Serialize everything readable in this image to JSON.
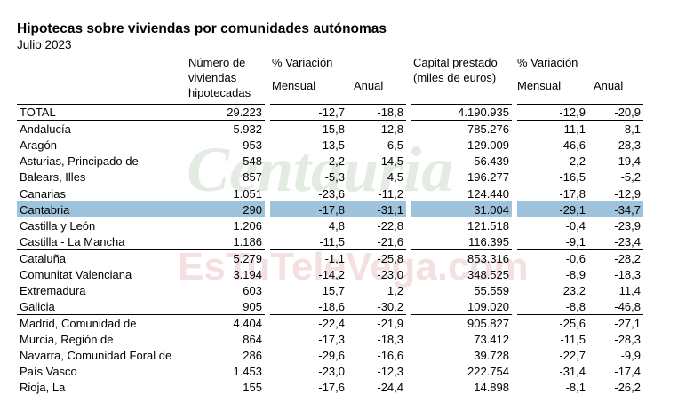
{
  "header": {
    "title": "Hipotecas sobre viviendas por comunidades autónomas",
    "subtitle": "Julio 2023",
    "col_numero": [
      "Número de",
      "viviendas",
      "hipotecadas"
    ],
    "col_variacion_1": "% Variación",
    "col_mensual_1": "Mensual",
    "col_anual_1": "Anual",
    "col_capital": [
      "Capital prestado",
      "(miles de euros)"
    ],
    "col_variacion_2": "% Variación",
    "col_mensual_2": "Mensual",
    "col_anual_2": "Anual"
  },
  "watermark": {
    "line1": "Centauria",
    "line2": "EsTuTeleVega.com"
  },
  "rows": [
    {
      "name": "TOTAL",
      "viviendas": "29.223",
      "v_mensual": "-12,7",
      "v_anual": "-18,8",
      "capital": "4.190.935",
      "c_mensual": "-12,9",
      "c_anual": "-20,9"
    },
    {
      "name": "Andalucía",
      "viviendas": "5.932",
      "v_mensual": "-15,8",
      "v_anual": "-12,8",
      "capital": "785.276",
      "c_mensual": "-11,1",
      "c_anual": "-8,1"
    },
    {
      "name": "Aragón",
      "viviendas": "953",
      "v_mensual": "13,5",
      "v_anual": "6,5",
      "capital": "129.009",
      "c_mensual": "46,6",
      "c_anual": "28,3"
    },
    {
      "name": "Asturias, Principado de",
      "viviendas": "548",
      "v_mensual": "2,2",
      "v_anual": "-14,5",
      "capital": "56.439",
      "c_mensual": "-2,2",
      "c_anual": "-19,4"
    },
    {
      "name": "Balears, Illes",
      "viviendas": "857",
      "v_mensual": "-5,3",
      "v_anual": "4,5",
      "capital": "196.277",
      "c_mensual": "-16,5",
      "c_anual": "-5,2"
    },
    {
      "name": "Canarias",
      "viviendas": "1.051",
      "v_mensual": "-23,6",
      "v_anual": "-11,2",
      "capital": "124.440",
      "c_mensual": "-17,8",
      "c_anual": "-12,9"
    },
    {
      "name": "Cantabria",
      "viviendas": "290",
      "v_mensual": "-17,8",
      "v_anual": "-31,1",
      "capital": "31.004",
      "c_mensual": "-29,1",
      "c_anual": "-34,7"
    },
    {
      "name": "Castilla y León",
      "viviendas": "1.206",
      "v_mensual": "4,8",
      "v_anual": "-22,8",
      "capital": "121.518",
      "c_mensual": "-0,4",
      "c_anual": "-23,9"
    },
    {
      "name": "Castilla - La Mancha",
      "viviendas": "1.186",
      "v_mensual": "-11,5",
      "v_anual": "-21,6",
      "capital": "116.395",
      "c_mensual": "-9,1",
      "c_anual": "-23,4"
    },
    {
      "name": "Cataluña",
      "viviendas": "5.279",
      "v_mensual": "-1,1",
      "v_anual": "-25,8",
      "capital": "853.316",
      "c_mensual": "-0,6",
      "c_anual": "-28,2"
    },
    {
      "name": "Comunitat Valenciana",
      "viviendas": "3.194",
      "v_mensual": "-14,2",
      "v_anual": "-23,0",
      "capital": "348.525",
      "c_mensual": "-8,9",
      "c_anual": "-18,3"
    },
    {
      "name": "Extremadura",
      "viviendas": "603",
      "v_mensual": "15,7",
      "v_anual": "1,2",
      "capital": "55.559",
      "c_mensual": "23,2",
      "c_anual": "11,4"
    },
    {
      "name": "Galicia",
      "viviendas": "905",
      "v_mensual": "-18,6",
      "v_anual": "-30,2",
      "capital": "109.020",
      "c_mensual": "-8,8",
      "c_anual": "-46,8"
    },
    {
      "name": "Madrid, Comunidad de",
      "viviendas": "4.404",
      "v_mensual": "-22,4",
      "v_anual": "-21,9",
      "capital": "905.827",
      "c_mensual": "-25,6",
      "c_anual": "-27,1"
    },
    {
      "name": "Murcia, Región de",
      "viviendas": "864",
      "v_mensual": "-17,3",
      "v_anual": "-18,3",
      "capital": "73.412",
      "c_mensual": "-11,5",
      "c_anual": "-28,3"
    },
    {
      "name": "Navarra, Comunidad Foral de",
      "viviendas": "286",
      "v_mensual": "-29,6",
      "v_anual": "-16,6",
      "capital": "39.728",
      "c_mensual": "-22,7",
      "c_anual": "-9,9"
    },
    {
      "name": "País Vasco",
      "viviendas": "1.453",
      "v_mensual": "-23,0",
      "v_anual": "-12,3",
      "capital": "222.754",
      "c_mensual": "-31,4",
      "c_anual": "-17,4"
    },
    {
      "name": "Rioja, La",
      "viviendas": "155",
      "v_mensual": "-17,6",
      "v_anual": "-24,4",
      "capital": "14.898",
      "c_mensual": "-8,1",
      "c_anual": "-26,2"
    }
  ],
  "highlighted_row": "Cantabria",
  "colors": {
    "highlight": "#9ec3dc",
    "watermark": "#dfe9df",
    "watermark_red": "#f3d9d9"
  }
}
